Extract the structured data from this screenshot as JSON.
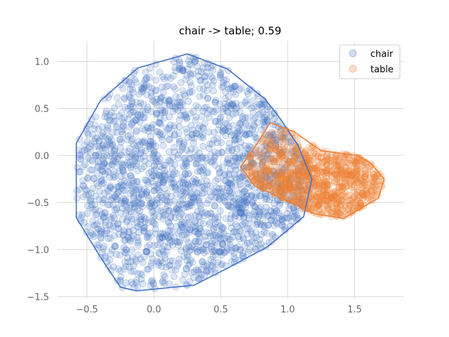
{
  "chart_data": {
    "type": "scatter",
    "title": "chair -> table; 0.59",
    "xlabel": "",
    "ylabel": "",
    "xlim": [
      -0.72,
      1.87
    ],
    "ylim": [
      -1.52,
      1.22
    ],
    "xticks": [
      -0.5,
      0.0,
      0.5,
      1.0,
      1.5
    ],
    "xtick_labels": [
      "−0.5",
      "0.0",
      "0.5",
      "1.0",
      "1.5"
    ],
    "yticks": [
      -1.5,
      -1.0,
      -0.5,
      0.0,
      0.5,
      1.0
    ],
    "ytick_labels": [
      "−1.5",
      "−1.0",
      "−0.5",
      "0.0",
      "0.5",
      "1.0"
    ],
    "grid": true,
    "legend_position": "top-right",
    "series": [
      {
        "name": "chair",
        "color": "#4472c4",
        "point_count_estimate": 2000,
        "center": [
          0.35,
          -0.25
        ],
        "hull": [
          [
            -0.58,
            0.13
          ],
          [
            -0.4,
            0.58
          ],
          [
            -0.12,
            0.93
          ],
          [
            0.25,
            1.08
          ],
          [
            0.55,
            0.92
          ],
          [
            0.83,
            0.6
          ],
          [
            0.95,
            0.38
          ],
          [
            1.08,
            0.1
          ],
          [
            1.18,
            -0.25
          ],
          [
            1.12,
            -0.65
          ],
          [
            0.85,
            -0.97
          ],
          [
            0.55,
            -1.2
          ],
          [
            0.3,
            -1.38
          ],
          [
            -0.13,
            -1.44
          ],
          [
            -0.25,
            -1.4
          ],
          [
            -0.4,
            -1.08
          ],
          [
            -0.58,
            -0.66
          ]
        ]
      },
      {
        "name": "table",
        "color": "#ed7d31",
        "point_count_estimate": 1000,
        "center": [
          1.22,
          -0.33
        ],
        "hull": [
          [
            0.87,
            0.35
          ],
          [
            1.05,
            0.25
          ],
          [
            1.25,
            0.05
          ],
          [
            1.52,
            0.0
          ],
          [
            1.62,
            -0.08
          ],
          [
            1.72,
            -0.25
          ],
          [
            1.68,
            -0.45
          ],
          [
            1.5,
            -0.6
          ],
          [
            1.42,
            -0.67
          ],
          [
            1.2,
            -0.62
          ],
          [
            0.95,
            -0.45
          ],
          [
            0.75,
            -0.32
          ],
          [
            0.65,
            -0.12
          ],
          [
            0.75,
            0.08
          ]
        ]
      }
    ]
  }
}
